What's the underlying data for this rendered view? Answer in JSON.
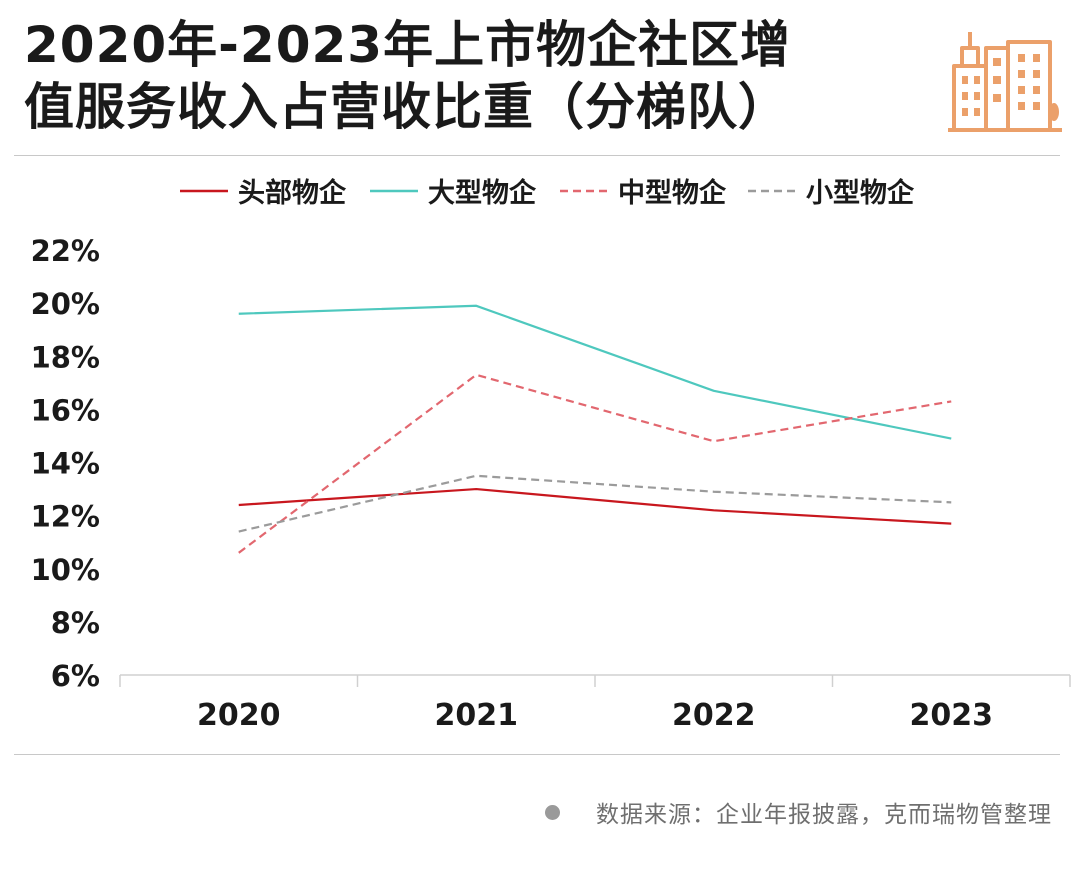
{
  "header": {
    "title_line1": "2020年-2023年上市物企社区增",
    "title_line2": "值服务收入占营收比重（分梯队）"
  },
  "logo": {
    "icon": "city-buildings-icon",
    "color": "#EBA06A"
  },
  "footer": {
    "source": "数据来源：企业年报披露，克而瑞物管整理"
  },
  "chart_data": {
    "type": "line",
    "categories": [
      "2020",
      "2021",
      "2022",
      "2023"
    ],
    "y_ticks": [
      "6%",
      "8%",
      "10%",
      "12%",
      "14%",
      "16%",
      "18%",
      "20%",
      "22%"
    ],
    "ylim": [
      6,
      22
    ],
    "y_unit": "%",
    "grid": false,
    "legend_position": "top",
    "series": [
      {
        "name": "头部物企",
        "values": [
          12.4,
          13.0,
          12.2,
          11.7
        ],
        "color": "#C8171E",
        "style": "solid"
      },
      {
        "name": "大型物企",
        "values": [
          19.6,
          19.9,
          16.7,
          14.9
        ],
        "color": "#4EC8BE",
        "style": "solid"
      },
      {
        "name": "中型物企",
        "values": [
          10.6,
          17.3,
          14.8,
          16.3
        ],
        "color": "#E2676F",
        "style": "dashed"
      },
      {
        "name": "小型物企",
        "values": [
          11.4,
          13.5,
          12.9,
          12.5
        ],
        "color": "#9B9B9B",
        "style": "dashed"
      }
    ]
  }
}
